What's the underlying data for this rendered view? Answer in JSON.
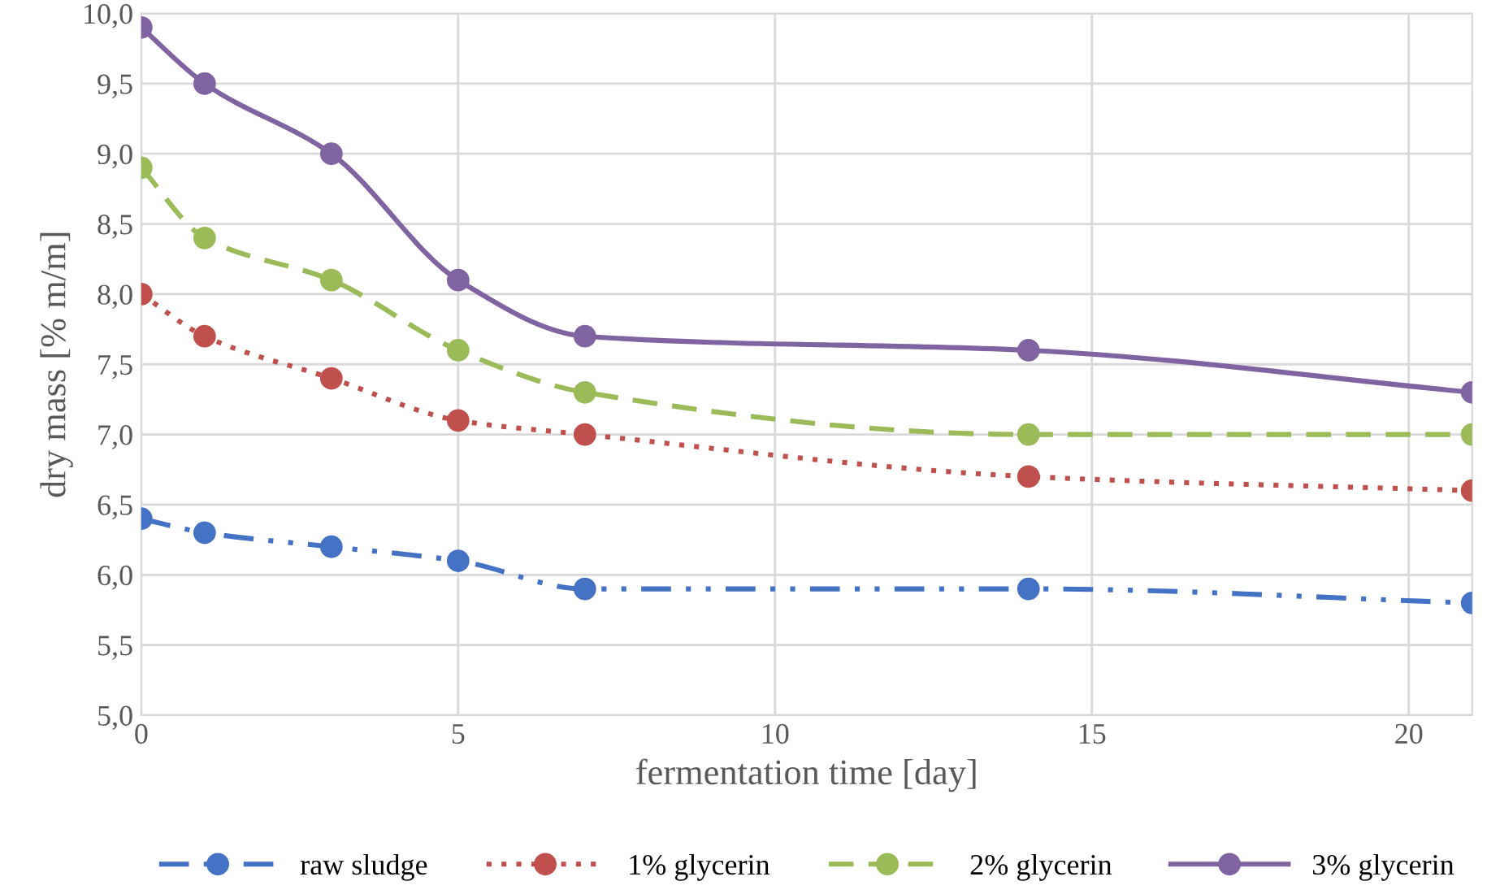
{
  "chart_data": {
    "type": "line",
    "xlabel": "fermentation time [day]",
    "ylabel": "dry mass [% m/m]",
    "x": [
      0,
      1,
      3,
      5,
      7,
      14,
      21
    ],
    "series": [
      {
        "name": "raw sludge",
        "color": "#4472c4",
        "line_style": "dashdot",
        "values": [
          6.4,
          6.3,
          6.2,
          6.1,
          5.9,
          5.9,
          5.8
        ]
      },
      {
        "name": "1% glycerin",
        "color": "#c0504d",
        "line_style": "dotted",
        "values": [
          8.0,
          7.7,
          7.4,
          7.1,
          7.0,
          6.7,
          6.6
        ]
      },
      {
        "name": "2% glycerin",
        "color": "#9bbb59",
        "line_style": "dashed",
        "values": [
          8.9,
          8.4,
          8.1,
          7.6,
          7.3,
          7.0,
          7.0
        ]
      },
      {
        "name": "3% glycerin",
        "color": "#8064a2",
        "line_style": "solid",
        "values": [
          9.9,
          9.5,
          9.0,
          8.1,
          7.7,
          7.6,
          7.3
        ]
      }
    ],
    "xlim": [
      0,
      21
    ],
    "xticks": [
      0,
      5,
      10,
      15,
      20
    ],
    "ylim": [
      5.0,
      10.0
    ],
    "yticks": [
      {
        "value": 5.0,
        "label": "5,0"
      },
      {
        "value": 5.5,
        "label": "5,5"
      },
      {
        "value": 6.0,
        "label": "6,0"
      },
      {
        "value": 6.5,
        "label": "6,5"
      },
      {
        "value": 7.0,
        "label": "7,0"
      },
      {
        "value": 7.5,
        "label": "7,5"
      },
      {
        "value": 8.0,
        "label": "8,0"
      },
      {
        "value": 8.5,
        "label": "8,5"
      },
      {
        "value": 9.0,
        "label": "9,0"
      },
      {
        "value": 9.5,
        "label": "9,5"
      },
      {
        "value": 10.0,
        "label": "10,0"
      }
    ],
    "grid": true,
    "legend": "bottom",
    "marker": "circle"
  }
}
